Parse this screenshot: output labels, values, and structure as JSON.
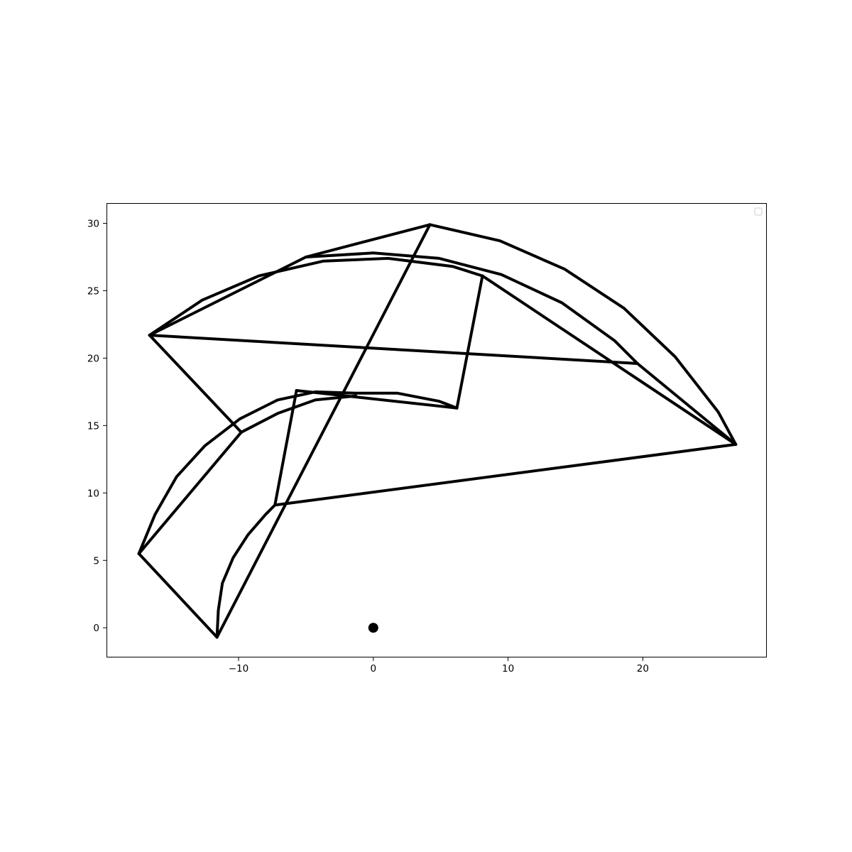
{
  "chart_data": {
    "type": "line",
    "title": "",
    "xlabel": "",
    "ylabel": "",
    "xlim": [
      -19.8,
      29.2
    ],
    "ylim": [
      -2.2,
      31.5
    ],
    "x_ticks": [
      -10,
      0,
      10,
      20
    ],
    "x_tick_labels": [
      "−10",
      "0",
      "10",
      "20"
    ],
    "y_ticks": [
      0,
      5,
      10,
      15,
      20,
      25,
      30
    ],
    "y_tick_labels": [
      "0",
      "5",
      "10",
      "15",
      "20",
      "25",
      "30"
    ],
    "grid": false,
    "legend": {
      "placement": "top-right",
      "entries": []
    },
    "line_color": "#000000",
    "series": [
      {
        "x": [
          -16.6,
          -5.0
        ],
        "y": [
          21.7,
          27.5
        ]
      },
      {
        "x": [
          -5.0,
          4.2
        ],
        "y": [
          27.5,
          29.9
        ]
      },
      {
        "x": [
          -16.6,
          19.6
        ],
        "y": [
          21.7,
          19.6
        ]
      },
      {
        "x": [
          -16.6,
          -9.8
        ],
        "y": [
          21.7,
          14.5
        ]
      },
      {
        "x": [
          -9.8,
          -17.4
        ],
        "y": [
          14.5,
          5.5
        ]
      },
      {
        "x": [
          -17.4,
          -11.6
        ],
        "y": [
          5.5,
          -0.7
        ]
      },
      {
        "x": [
          -11.6,
          4.2
        ],
        "y": [
          -0.7,
          29.9
        ]
      },
      {
        "x": [
          4.2,
          9.4,
          14.2,
          18.6,
          22.4,
          25.6,
          26.9
        ],
        "y": [
          29.9,
          28.7,
          26.6,
          23.7,
          20.1,
          16.0,
          13.6
        ]
      },
      {
        "x": [
          26.9,
          8.1
        ],
        "y": [
          13.6,
          26.1
        ]
      },
      {
        "x": [
          8.1,
          6.2
        ],
        "y": [
          26.1,
          16.3
        ]
      },
      {
        "x": [
          6.2,
          -5.7
        ],
        "y": [
          16.3,
          17.6
        ]
      },
      {
        "x": [
          -5.7,
          -7.3
        ],
        "y": [
          17.6,
          9.1
        ]
      },
      {
        "x": [
          -7.3,
          26.9
        ],
        "y": [
          9.1,
          13.6
        ]
      },
      {
        "x": [
          -12.7,
          -8.5,
          -3.7,
          1.1,
          5.9,
          8.1
        ],
        "y": [
          24.3,
          26.1,
          27.2,
          27.4,
          26.8,
          26.1
        ]
      },
      {
        "x": [
          -16.6,
          -12.7
        ],
        "y": [
          21.7,
          24.3
        ]
      },
      {
        "x": [
          -7.3,
          -8.0,
          -9.3,
          -10.4,
          -11.2,
          -11.5,
          -11.6
        ],
        "y": [
          9.1,
          8.4,
          6.9,
          5.2,
          3.3,
          1.3,
          -0.7
        ]
      },
      {
        "x": [
          -17.4,
          -16.2,
          -14.6,
          -12.5,
          -9.9,
          -7.1,
          -4.3,
          -1.3,
          1.8,
          4.9,
          6.2
        ],
        "y": [
          5.5,
          8.4,
          11.2,
          13.5,
          15.5,
          16.9,
          17.5,
          17.4,
          17.4,
          16.8,
          16.3
        ]
      },
      {
        "x": [
          -9.8,
          -7.1,
          -4.3,
          -1.3
        ],
        "y": [
          14.5,
          15.9,
          16.9,
          17.2
        ]
      },
      {
        "x": [
          -5.0,
          0.0,
          4.9,
          9.5,
          14.0,
          17.9,
          19.6
        ],
        "y": [
          27.5,
          27.8,
          27.4,
          26.2,
          24.1,
          21.3,
          19.6
        ]
      },
      {
        "x": [
          19.6,
          26.9
        ],
        "y": [
          19.6,
          13.6
        ]
      }
    ],
    "markers": [
      {
        "x": 0,
        "y": 0,
        "color": "#000000"
      }
    ]
  }
}
